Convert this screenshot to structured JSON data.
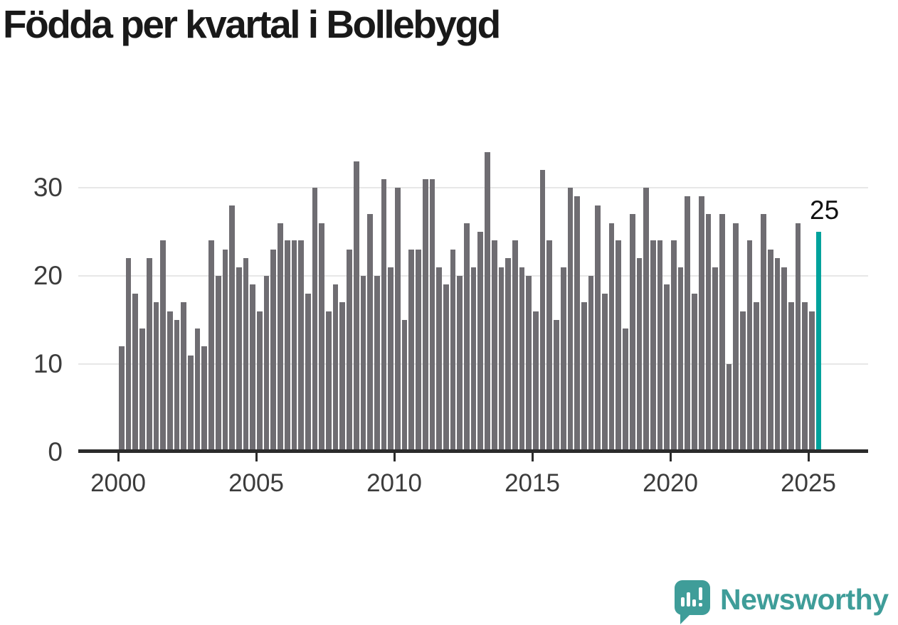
{
  "title": "Födda per kvartal i Bollebygd",
  "annotation": {
    "label": "25"
  },
  "logo": {
    "text": "Newsworthy"
  },
  "colors": {
    "bar": "#6f6d72",
    "highlight": "#00a29c",
    "grid": "#e7e7e7",
    "axis": "#2b2b2b",
    "tick_text": "#3c3c3c",
    "title_text": "#191919",
    "annotation_text": "#111111",
    "logo": "#3f9d99"
  },
  "chart_data": {
    "type": "bar",
    "title": "Födda per kvartal i Bollebygd",
    "x_start": "2000-Q1",
    "x_end": "2025-Q2",
    "frequency": "quarterly",
    "values": [
      12,
      22,
      18,
      14,
      22,
      17,
      24,
      16,
      15,
      17,
      11,
      14,
      12,
      24,
      20,
      23,
      28,
      21,
      22,
      19,
      16,
      20,
      23,
      26,
      24,
      24,
      24,
      18,
      30,
      26,
      16,
      19,
      17,
      23,
      33,
      20,
      27,
      20,
      31,
      21,
      30,
      15,
      23,
      23,
      31,
      31,
      21,
      19,
      23,
      20,
      26,
      21,
      25,
      34,
      24,
      21,
      22,
      24,
      21,
      20,
      16,
      32,
      24,
      15,
      21,
      30,
      29,
      17,
      20,
      28,
      18,
      26,
      24,
      14,
      27,
      22,
      30,
      24,
      24,
      19,
      24,
      21,
      29,
      18,
      29,
      27,
      21,
      27,
      10,
      26,
      16,
      24,
      17,
      27,
      23,
      22,
      21,
      17,
      26,
      17,
      16,
      25
    ],
    "highlight_last": true,
    "highlight_value": 25,
    "y_ticks": [
      0,
      10,
      20,
      30
    ],
    "ylim": [
      0,
      36
    ],
    "x_tick_labels": [
      "2000",
      "2005",
      "2010",
      "2015",
      "2020",
      "2025"
    ],
    "x_tick_every_n_bars": 20,
    "grid": "horizontal",
    "legend": "none"
  }
}
